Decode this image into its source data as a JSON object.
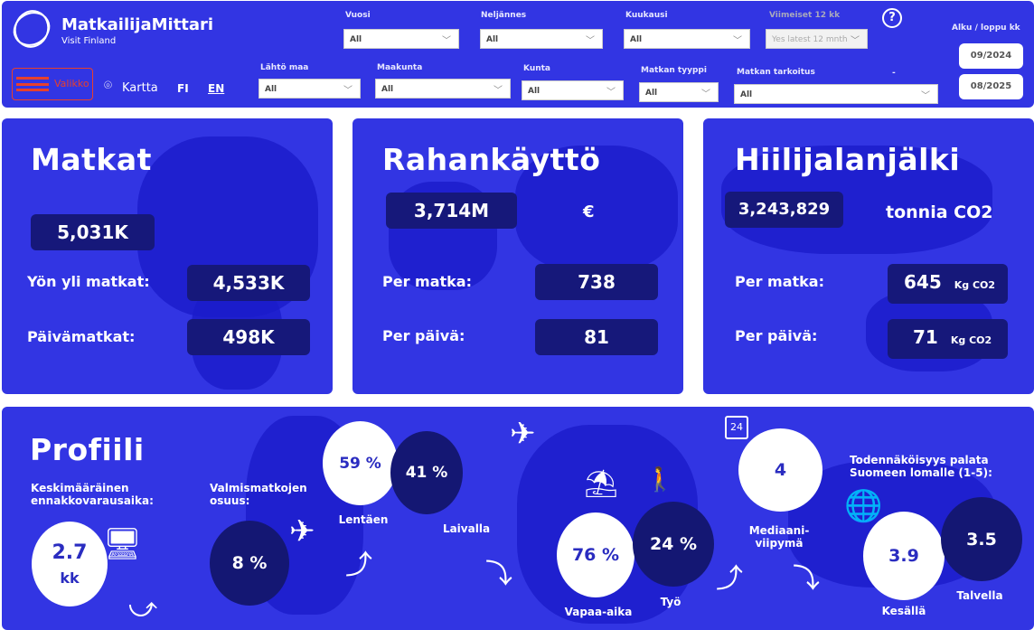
{
  "header": {
    "app_name": "MatkailijaMittari",
    "subtitle": "Visit Finland",
    "menu_label": "Valikko",
    "map_label": "Kartta",
    "lang_fi": "FI",
    "lang_en": "EN",
    "help": "?",
    "filters": {
      "vuosi": {
        "label": "Vuosi",
        "value": "All"
      },
      "nelj": {
        "label": "Neljännes",
        "value": "All"
      },
      "kuukausi": {
        "label": "Kuukausi",
        "value": "All"
      },
      "viimeiset": {
        "label": "Viimeiset 12 kk",
        "value": "Yes latest 12 mnth"
      },
      "lahto": {
        "label": "Lähtö maa",
        "value": "All"
      },
      "maakunta": {
        "label": "Maakunta",
        "value": "All"
      },
      "kunta": {
        "label": "Kunta",
        "value": "All"
      },
      "tyyppi": {
        "label": "Matkan tyyppi",
        "value": "All"
      },
      "tarkoitus": {
        "label": "Matkan tarkoitus",
        "value": "All"
      },
      "dash": "-"
    },
    "period": {
      "label": "Alku / loppu kk",
      "start": "09/2024",
      "end": "08/2025"
    }
  },
  "matkat": {
    "title": "Matkat",
    "total": "5,031K",
    "overnight_label": "Yön yli matkat:",
    "overnight": "4,533K",
    "day_label": "Päivämatkat:",
    "day": "498K"
  },
  "raha": {
    "title": "Rahankäyttö",
    "total": "3,714M",
    "unit": "€",
    "per_trip_label": "Per matka:",
    "per_trip": "738",
    "per_day_label": "Per päivä:",
    "per_day": "81"
  },
  "hiili": {
    "title": "Hiilijalanjälki",
    "total": "3,243,829",
    "unit": "tonnia CO2",
    "per_trip_label": "Per matka:",
    "per_trip": "645",
    "per_day_label": "Per päivä:",
    "per_day": "71",
    "kg_unit": "Kg CO2"
  },
  "profiili": {
    "title": "Profiili",
    "booking_label": "Keskimääräinen ennakkovarausaika:",
    "booking_value": "2.7",
    "booking_unit": "kk",
    "package_label": "Valmismatkojen osuus:",
    "package_value": "8 %",
    "air_value": "59 %",
    "air_label": "Lentäen",
    "sea_value": "41 %",
    "sea_label": "Laivalla",
    "leisure_value": "76 %",
    "leisure_label": "Vapaa-aika",
    "work_value": "24 %",
    "work_label": "Työ",
    "stay_value": "4",
    "stay_label": "Mediaani-viipymä",
    "calendar_number": "24",
    "return_label": "Todennäköisyys palata Suomeen lomalle (1-5):",
    "summer_value": "3.9",
    "summer_label": "Kesällä",
    "winter_value": "3.5",
    "winter_label": "Talvella"
  },
  "colors": {
    "panel": "#3235e3",
    "dark": "#141773",
    "menu": "#e8402c"
  }
}
